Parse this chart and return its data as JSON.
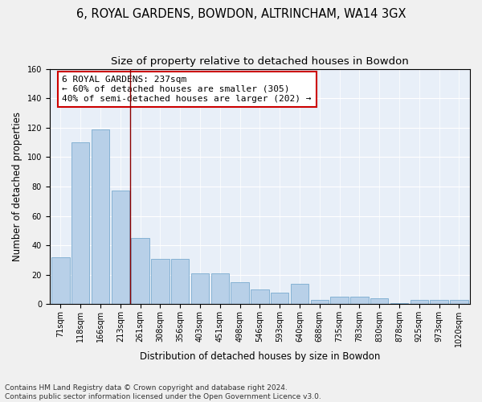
{
  "title": "6, ROYAL GARDENS, BOWDON, ALTRINCHAM, WA14 3GX",
  "subtitle": "Size of property relative to detached houses in Bowdon",
  "xlabel": "Distribution of detached houses by size in Bowdon",
  "ylabel": "Number of detached properties",
  "categories": [
    "71sqm",
    "118sqm",
    "166sqm",
    "213sqm",
    "261sqm",
    "308sqm",
    "356sqm",
    "403sqm",
    "451sqm",
    "498sqm",
    "546sqm",
    "593sqm",
    "640sqm",
    "688sqm",
    "735sqm",
    "783sqm",
    "830sqm",
    "878sqm",
    "925sqm",
    "973sqm",
    "1020sqm"
  ],
  "values": [
    32,
    110,
    119,
    77,
    45,
    31,
    31,
    21,
    21,
    15,
    10,
    8,
    14,
    3,
    5,
    5,
    4,
    1,
    3,
    3,
    3
  ],
  "bar_color": "#b8d0e8",
  "bar_edge_color": "#7aabcf",
  "vline_x": 3.5,
  "vline_color": "#8b0000",
  "annotation_text": "6 ROYAL GARDENS: 237sqm\n← 60% of detached houses are smaller (305)\n40% of semi-detached houses are larger (202) →",
  "annotation_box_color": "#ffffff",
  "annotation_box_edge_color": "#cc0000",
  "ylim": [
    0,
    160
  ],
  "yticks": [
    0,
    20,
    40,
    60,
    80,
    100,
    120,
    140,
    160
  ],
  "fig_bg_color": "#f0f0f0",
  "plot_bg_color": "#e8eff8",
  "footer_text": "Contains HM Land Registry data © Crown copyright and database right 2024.\nContains public sector information licensed under the Open Government Licence v3.0.",
  "title_fontsize": 10.5,
  "subtitle_fontsize": 9.5,
  "axis_label_fontsize": 8.5,
  "tick_fontsize": 7,
  "annotation_fontsize": 8,
  "footer_fontsize": 6.5
}
